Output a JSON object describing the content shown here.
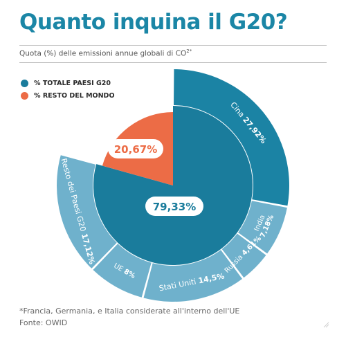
{
  "header": {
    "title": "Quanto inquina il G20?",
    "subtitle": "Quota (%) delle emissioni annue globali di CO",
    "subtitle_sup": "2*"
  },
  "colors": {
    "g20": "#1a7c9c",
    "rest": "#ec6c46",
    "outer_large": "#1b83a4",
    "outer_light": "#6fb1cc",
    "title": "#1b86a6"
  },
  "chart_data": {
    "type": "pie",
    "legend": [
      {
        "label": "% TOTALE PAESI G20",
        "color": "#1a7c9c"
      },
      {
        "label": "% RESTO DEL MONDO",
        "color": "#ec6c46"
      }
    ],
    "inner": [
      {
        "name": "G20",
        "label": "79,33%",
        "value": 79.33
      },
      {
        "name": "Resto del mondo",
        "label": "20,67%",
        "value": 20.67
      }
    ],
    "outer": [
      {
        "name": "Cina",
        "label": "27,92%",
        "value": 27.92
      },
      {
        "name": "India",
        "label": "7,18%",
        "value": 7.18
      },
      {
        "name": "Russia",
        "label": "4,61%",
        "value": 4.61
      },
      {
        "name": "Stati Uniti",
        "label": "14,5%",
        "value": 14.5
      },
      {
        "name": "UE",
        "label": "8%",
        "value": 8
      },
      {
        "name": "Resto dei Paesi G20",
        "label": "17,12%",
        "value": 17.12
      }
    ]
  },
  "footer": {
    "note": "*Francia, Germania, e Italia considerate all'interno dell'UE",
    "source": "Fonte: OWID"
  }
}
